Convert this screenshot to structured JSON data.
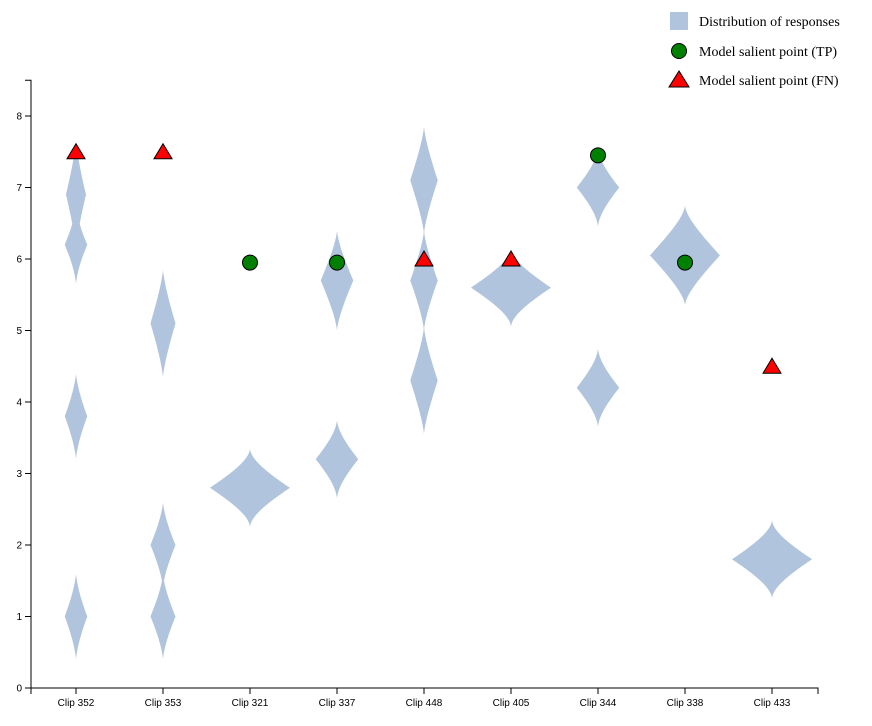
{
  "colors": {
    "distribution": "#b0c4de",
    "tp": "#008000",
    "fn": "#ff0000",
    "axis": "#000000"
  },
  "legend": {
    "items": [
      {
        "label": "Distribution of responses",
        "shape": "square",
        "color": "#b0c4de"
      },
      {
        "label": "Model salient point (TP)",
        "shape": "circle",
        "color": "#008000"
      },
      {
        "label": "Model salient point (FN)",
        "shape": "triangle",
        "color": "#ff0000"
      }
    ],
    "placement": "top-right"
  },
  "chart_data": {
    "type": "violin",
    "title": "",
    "xlabel": "",
    "ylabel": "",
    "ylim": [
      0,
      8.5
    ],
    "yticks": [
      "0",
      "1",
      "2",
      "3",
      "4",
      "5",
      "6",
      "7",
      "8"
    ],
    "grid": false,
    "categories": [
      "Clip 352",
      "Clip 353",
      "Clip 321",
      "Clip 337",
      "Clip 448",
      "Clip 405",
      "Clip 344",
      "Clip 338",
      "Clip 433"
    ],
    "distributions": [
      {
        "clip": "Clip 352",
        "modes": [
          {
            "y": 6.9,
            "w": 0.4,
            "h": 0.55
          },
          {
            "y": 6.2,
            "w": 0.45,
            "h": 0.35
          },
          {
            "y": 3.8,
            "w": 0.45,
            "h": 0.4
          },
          {
            "y": 1.0,
            "w": 0.45,
            "h": 0.4
          }
        ]
      },
      {
        "clip": "Clip 353",
        "modes": [
          {
            "y": 5.1,
            "w": 0.5,
            "h": 0.55
          },
          {
            "y": 2.0,
            "w": 0.5,
            "h": 0.4
          },
          {
            "y": 1.0,
            "w": 0.5,
            "h": 0.4
          }
        ]
      },
      {
        "clip": "Clip 321",
        "modes": [
          {
            "y": 2.8,
            "w": 1.6,
            "h": 0.35
          }
        ]
      },
      {
        "clip": "Clip 337",
        "modes": [
          {
            "y": 5.7,
            "w": 0.65,
            "h": 0.5
          },
          {
            "y": 3.2,
            "w": 0.85,
            "h": 0.35
          }
        ]
      },
      {
        "clip": "Clip 448",
        "modes": [
          {
            "y": 7.1,
            "w": 0.55,
            "h": 0.55
          },
          {
            "y": 5.7,
            "w": 0.55,
            "h": 0.5
          },
          {
            "y": 4.3,
            "w": 0.55,
            "h": 0.55
          }
        ]
      },
      {
        "clip": "Clip 405",
        "modes": [
          {
            "y": 5.6,
            "w": 1.6,
            "h": 0.35
          }
        ]
      },
      {
        "clip": "Clip 344",
        "modes": [
          {
            "y": 7.0,
            "w": 0.85,
            "h": 0.35
          },
          {
            "y": 4.2,
            "w": 0.85,
            "h": 0.35
          }
        ]
      },
      {
        "clip": "Clip 338",
        "modes": [
          {
            "y": 6.05,
            "w": 1.4,
            "h": 0.5
          }
        ]
      },
      {
        "clip": "Clip 433",
        "modes": [
          {
            "y": 1.8,
            "w": 1.6,
            "h": 0.35
          }
        ]
      }
    ],
    "salient_points": [
      {
        "clip": "Clip 352",
        "y": 7.5,
        "type": "FN"
      },
      {
        "clip": "Clip 353",
        "y": 7.5,
        "type": "FN"
      },
      {
        "clip": "Clip 321",
        "y": 5.95,
        "type": "TP"
      },
      {
        "clip": "Clip 337",
        "y": 5.95,
        "type": "TP"
      },
      {
        "clip": "Clip 448",
        "y": 6.0,
        "type": "FN"
      },
      {
        "clip": "Clip 405",
        "y": 6.0,
        "type": "FN"
      },
      {
        "clip": "Clip 344",
        "y": 7.45,
        "type": "TP"
      },
      {
        "clip": "Clip 338",
        "y": 5.95,
        "type": "TP"
      },
      {
        "clip": "Clip 433",
        "y": 4.5,
        "type": "FN"
      }
    ]
  }
}
